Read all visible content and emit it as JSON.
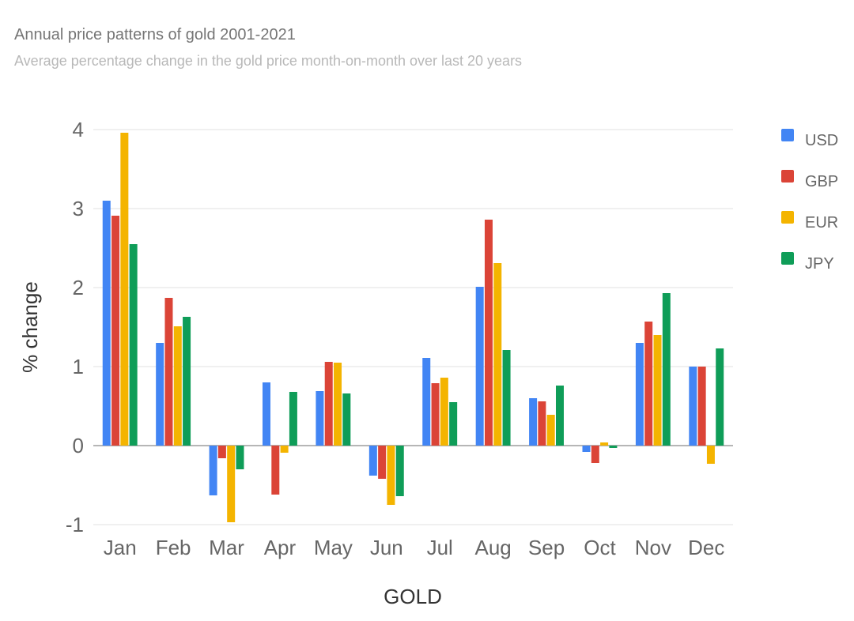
{
  "chart_data": {
    "type": "bar",
    "title": "Annual price patterns of gold 2001-2021",
    "subtitle": "Average percentage change in the gold price month-on-month over last 20 years",
    "xlabel": "GOLD",
    "ylabel": "% change",
    "ylim": [
      -1,
      4
    ],
    "yticks": [
      "-1",
      "0",
      "1",
      "2",
      "3",
      "4"
    ],
    "grid": true,
    "legend_position": "right",
    "categories": [
      "Jan",
      "Feb",
      "Mar",
      "Apr",
      "May",
      "Jun",
      "Jul",
      "Aug",
      "Sep",
      "Oct",
      "Nov",
      "Dec"
    ],
    "series": [
      {
        "name": "USD",
        "color": "#4285f4",
        "values": [
          3.1,
          1.3,
          -0.63,
          0.8,
          0.69,
          -0.38,
          1.11,
          2.01,
          0.6,
          -0.08,
          1.3,
          1.0
        ]
      },
      {
        "name": "GBP",
        "color": "#db4437",
        "values": [
          2.91,
          1.87,
          -0.16,
          -0.62,
          1.06,
          -0.42,
          0.79,
          2.86,
          0.56,
          -0.22,
          1.57,
          1.0
        ]
      },
      {
        "name": "EUR",
        "color": "#f4b400",
        "values": [
          3.96,
          1.51,
          -0.97,
          -0.09,
          1.05,
          -0.75,
          0.86,
          2.31,
          0.39,
          0.04,
          1.4,
          -0.23
        ]
      },
      {
        "name": "JPY",
        "color": "#0f9d58",
        "values": [
          2.55,
          1.63,
          -0.3,
          0.68,
          0.66,
          -0.64,
          0.55,
          1.21,
          0.76,
          -0.03,
          1.93,
          1.23
        ]
      }
    ]
  }
}
